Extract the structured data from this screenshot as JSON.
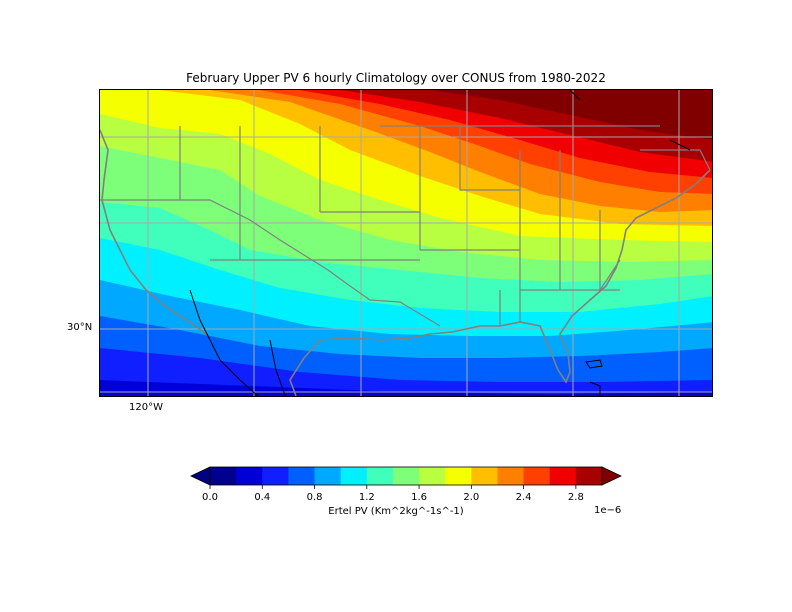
{
  "title": "February Upper PV 6 hourly Climatology over CONUS from 1980-2022",
  "axes": {
    "lat_label": "30°N",
    "lon_label": "120°W"
  },
  "colorbar": {
    "label": "Ertel PV (Km^2kg^-1s^-1)",
    "exponent": "1e−6",
    "ticks": [
      "0.0",
      "0.4",
      "0.8",
      "1.2",
      "1.6",
      "2.0",
      "2.4",
      "2.8"
    ],
    "levels": [
      0.0,
      0.2,
      0.4,
      0.6,
      0.8,
      1.0,
      1.2,
      1.4,
      1.6,
      1.8,
      2.0,
      2.2,
      2.4,
      2.6,
      2.8,
      3.0
    ],
    "colors": [
      "#00008f",
      "#0000d6",
      "#0f1fff",
      "#0060ff",
      "#00a8ff",
      "#00f0ff",
      "#40ffbd",
      "#7dff7a",
      "#b7ff40",
      "#f5ff00",
      "#ffbf00",
      "#ff8000",
      "#ff4000",
      "#f00000",
      "#a80000"
    ],
    "under_color": "#000080",
    "over_color": "#800000",
    "extend": "both"
  },
  "map": {
    "projection": "PlateCarree",
    "region": "CONUS",
    "gridlines": true,
    "features": [
      "coastlines",
      "country borders",
      "state borders"
    ],
    "field_trend": "PV increases from south (~0.2e-6) to northeast (>3.0e-6)"
  }
}
